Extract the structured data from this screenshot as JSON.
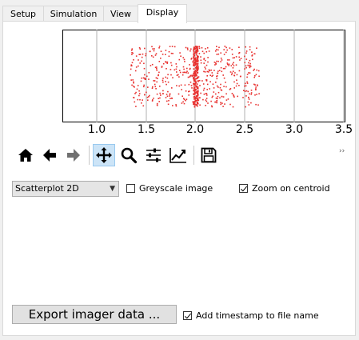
{
  "tabs": [
    {
      "label": "Setup",
      "active": false
    },
    {
      "label": "Simulation",
      "active": false
    },
    {
      "label": "View",
      "active": false
    },
    {
      "label": "Display",
      "active": true
    }
  ],
  "plot": {
    "tick_labels": [
      "1.0",
      "1.5",
      "2.0",
      "2.5",
      "3.0",
      "3.5"
    ],
    "point_color": "#e8312f",
    "grid_color": "#b0b0b0"
  },
  "toolbar": {
    "icons": [
      "home-icon",
      "back-arrow-icon",
      "forward-arrow-icon",
      "pan-icon",
      "zoom-icon",
      "configure-subplots-icon",
      "edit-axis-icon",
      "save-icon"
    ],
    "active": "pan-icon",
    "overflow_glyph": "››"
  },
  "display_mode": {
    "selected": "Scatterplot 2D"
  },
  "greyscale": {
    "label": "Greyscale image",
    "checked": false
  },
  "zoom_centroid": {
    "label": "Zoom on centroid",
    "checked": true
  },
  "export": {
    "label": "Export imager data ..."
  },
  "timestamp": {
    "label": "Add timestamp to file name",
    "checked": true
  }
}
